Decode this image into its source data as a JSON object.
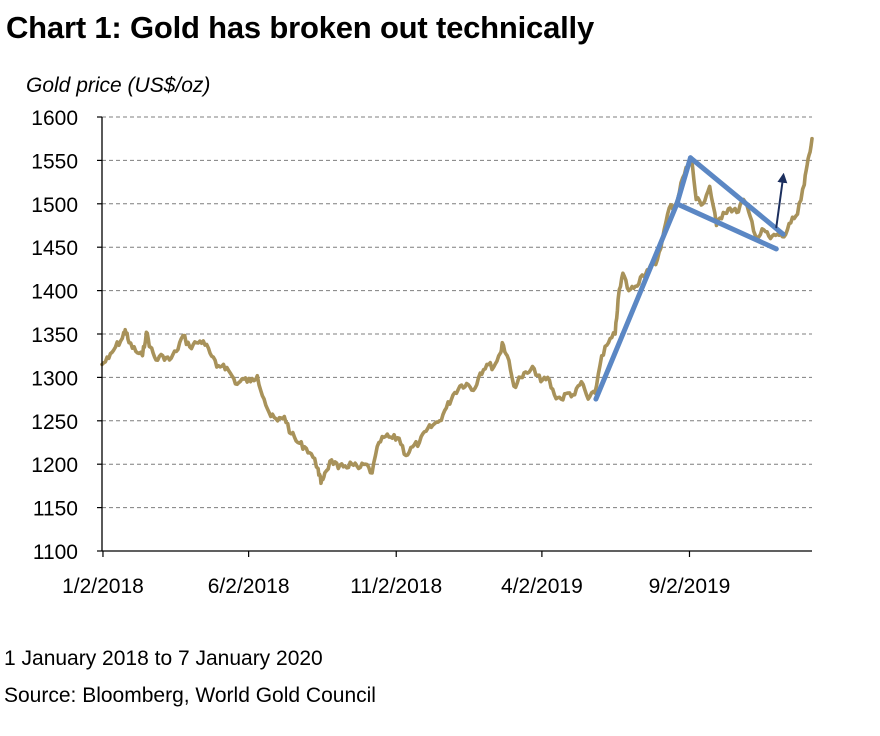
{
  "chart_data": {
    "type": "line",
    "title": "Chart 1: Gold has broken out technically",
    "ylabel": "Gold price (US$/oz)",
    "xlabel": "",
    "ylim": [
      1100,
      1600
    ],
    "y_ticks": [
      1100,
      1150,
      1200,
      1250,
      1300,
      1350,
      1400,
      1450,
      1500,
      1550,
      1600
    ],
    "x_range": [
      "2018-01-01",
      "2020-01-07"
    ],
    "x_ticks": [
      {
        "date": "2018-01-02",
        "label": "1/2/2018"
      },
      {
        "date": "2018-06-02",
        "label": "6/2/2018"
      },
      {
        "date": "2018-11-02",
        "label": "11/2/2018"
      },
      {
        "date": "2019-04-02",
        "label": "4/2/2019"
      },
      {
        "date": "2019-09-02",
        "label": "9/2/2019"
      }
    ],
    "grid": "horizontal dashed",
    "series": [
      {
        "color": "#a8925a",
        "points": [
          [
            "2018-01-01",
            1315
          ],
          [
            "2018-01-08",
            1322
          ],
          [
            "2018-01-15",
            1335
          ],
          [
            "2018-01-22",
            1345
          ],
          [
            "2018-01-25",
            1355
          ],
          [
            "2018-01-29",
            1340
          ],
          [
            "2018-02-05",
            1330
          ],
          [
            "2018-02-12",
            1325
          ],
          [
            "2018-02-16",
            1352
          ],
          [
            "2018-02-20",
            1335
          ],
          [
            "2018-02-26",
            1320
          ],
          [
            "2018-03-05",
            1325
          ],
          [
            "2018-03-12",
            1320
          ],
          [
            "2018-03-19",
            1330
          ],
          [
            "2018-03-26",
            1348
          ],
          [
            "2018-04-02",
            1335
          ],
          [
            "2018-04-09",
            1340
          ],
          [
            "2018-04-16",
            1342
          ],
          [
            "2018-04-23",
            1328
          ],
          [
            "2018-04-30",
            1312
          ],
          [
            "2018-05-07",
            1315
          ],
          [
            "2018-05-14",
            1305
          ],
          [
            "2018-05-21",
            1292
          ],
          [
            "2018-05-28",
            1298
          ],
          [
            "2018-06-04",
            1295
          ],
          [
            "2018-06-11",
            1302
          ],
          [
            "2018-06-18",
            1275
          ],
          [
            "2018-06-25",
            1255
          ],
          [
            "2018-07-02",
            1250
          ],
          [
            "2018-07-09",
            1255
          ],
          [
            "2018-07-16",
            1235
          ],
          [
            "2018-07-23",
            1225
          ],
          [
            "2018-07-30",
            1220
          ],
          [
            "2018-08-06",
            1212
          ],
          [
            "2018-08-13",
            1195
          ],
          [
            "2018-08-16",
            1178
          ],
          [
            "2018-08-20",
            1190
          ],
          [
            "2018-08-27",
            1205
          ],
          [
            "2018-09-03",
            1195
          ],
          [
            "2018-09-10",
            1198
          ],
          [
            "2018-09-17",
            1200
          ],
          [
            "2018-09-24",
            1195
          ],
          [
            "2018-10-01",
            1200
          ],
          [
            "2018-10-08",
            1190
          ],
          [
            "2018-10-15",
            1225
          ],
          [
            "2018-10-22",
            1232
          ],
          [
            "2018-10-29",
            1230
          ],
          [
            "2018-11-05",
            1230
          ],
          [
            "2018-11-12",
            1210
          ],
          [
            "2018-11-19",
            1220
          ],
          [
            "2018-11-26",
            1225
          ],
          [
            "2018-12-03",
            1238
          ],
          [
            "2018-12-10",
            1245
          ],
          [
            "2018-12-17",
            1250
          ],
          [
            "2018-12-24",
            1265
          ],
          [
            "2018-12-31",
            1280
          ],
          [
            "2019-01-07",
            1290
          ],
          [
            "2019-01-14",
            1293
          ],
          [
            "2019-01-21",
            1285
          ],
          [
            "2019-01-28",
            1305
          ],
          [
            "2019-02-04",
            1315
          ],
          [
            "2019-02-11",
            1312
          ],
          [
            "2019-02-18",
            1328
          ],
          [
            "2019-02-20",
            1340
          ],
          [
            "2019-02-25",
            1325
          ],
          [
            "2019-03-04",
            1290
          ],
          [
            "2019-03-11",
            1300
          ],
          [
            "2019-03-18",
            1305
          ],
          [
            "2019-03-25",
            1310
          ],
          [
            "2019-04-01",
            1295
          ],
          [
            "2019-04-08",
            1300
          ],
          [
            "2019-04-15",
            1280
          ],
          [
            "2019-04-22",
            1275
          ],
          [
            "2019-04-29",
            1282
          ],
          [
            "2019-05-06",
            1280
          ],
          [
            "2019-05-13",
            1295
          ],
          [
            "2019-05-20",
            1275
          ],
          [
            "2019-05-27",
            1282
          ],
          [
            "2019-06-03",
            1325
          ],
          [
            "2019-06-10",
            1340
          ],
          [
            "2019-06-17",
            1350
          ],
          [
            "2019-06-20",
            1390
          ],
          [
            "2019-06-25",
            1420
          ],
          [
            "2019-07-01",
            1400
          ],
          [
            "2019-07-08",
            1405
          ],
          [
            "2019-07-15",
            1418
          ],
          [
            "2019-07-22",
            1425
          ],
          [
            "2019-07-29",
            1430
          ],
          [
            "2019-08-05",
            1460
          ],
          [
            "2019-08-12",
            1495
          ],
          [
            "2019-08-19",
            1500
          ],
          [
            "2019-08-26",
            1530
          ],
          [
            "2019-09-02",
            1548
          ],
          [
            "2019-09-04",
            1553
          ],
          [
            "2019-09-09",
            1505
          ],
          [
            "2019-09-16",
            1500
          ],
          [
            "2019-09-23",
            1520
          ],
          [
            "2019-09-30",
            1475
          ],
          [
            "2019-10-07",
            1490
          ],
          [
            "2019-10-14",
            1495
          ],
          [
            "2019-10-21",
            1490
          ],
          [
            "2019-10-28",
            1505
          ],
          [
            "2019-11-04",
            1485
          ],
          [
            "2019-11-11",
            1460
          ],
          [
            "2019-11-18",
            1470
          ],
          [
            "2019-11-25",
            1460
          ],
          [
            "2019-12-02",
            1465
          ],
          [
            "2019-12-09",
            1462
          ],
          [
            "2019-12-16",
            1478
          ],
          [
            "2019-12-23",
            1488
          ],
          [
            "2019-12-30",
            1522
          ],
          [
            "2020-01-03",
            1552
          ],
          [
            "2020-01-07",
            1575
          ]
        ]
      }
    ],
    "annotations": [
      {
        "type": "trendline",
        "color": "#5b87c4",
        "from": [
          "2019-05-28",
          1275
        ],
        "to": [
          "2019-08-20",
          1500
        ]
      },
      {
        "type": "trendline",
        "color": "#5b87c4",
        "from": [
          "2019-08-20",
          1500
        ],
        "to": [
          "2019-09-03",
          1553
        ]
      },
      {
        "type": "trendline",
        "color": "#5b87c4",
        "from": [
          "2019-09-03",
          1553
        ],
        "to": [
          "2019-12-08",
          1465
        ]
      },
      {
        "type": "trendline",
        "color": "#5b87c4",
        "from": [
          "2019-08-20",
          1500
        ],
        "to": [
          "2019-12-01",
          1448
        ]
      },
      {
        "type": "arrow",
        "color": "#1c2f5e",
        "from": [
          "2019-12-01",
          1473
        ],
        "to": [
          "2019-12-08",
          1530
        ]
      }
    ]
  },
  "footnote": "1 January 2018 to 7 January 2020",
  "source": "Source: Bloomberg, World Gold Council"
}
